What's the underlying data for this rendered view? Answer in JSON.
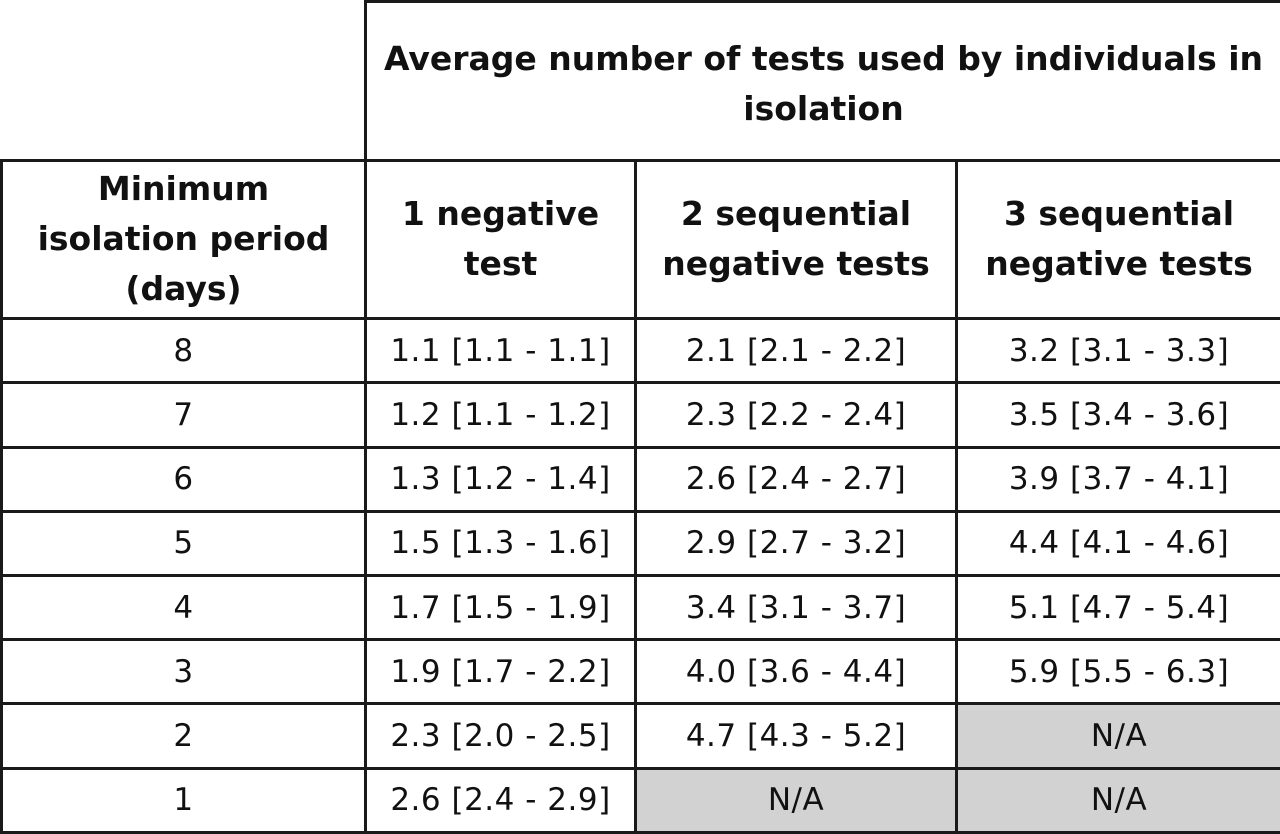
{
  "table": {
    "group_header": "Average number of tests used by individuals in isolation",
    "row_header": "Minimum isolation period (days)",
    "columns": [
      "1 negative test",
      "2 sequential negative tests",
      "3 sequential negative tests"
    ],
    "rows": [
      {
        "days": "8",
        "c1": "1.1 [1.1 - 1.1]",
        "c2": "2.1 [2.1 - 2.2]",
        "c3": "3.2 [3.1 - 3.3]"
      },
      {
        "days": "7",
        "c1": "1.2 [1.1 - 1.2]",
        "c2": "2.3 [2.2 - 2.4]",
        "c3": "3.5 [3.4 - 3.6]"
      },
      {
        "days": "6",
        "c1": "1.3 [1.2 - 1.4]",
        "c2": "2.6 [2.4 - 2.7]",
        "c3": "3.9 [3.7 - 4.1]"
      },
      {
        "days": "5",
        "c1": "1.5 [1.3 - 1.6]",
        "c2": "2.9 [2.7 - 3.2]",
        "c3": "4.4 [4.1 - 4.6]"
      },
      {
        "days": "4",
        "c1": "1.7 [1.5 - 1.9]",
        "c2": "3.4 [3.1 - 3.7]",
        "c3": "5.1 [4.7 - 5.4]"
      },
      {
        "days": "3",
        "c1": "1.9 [1.7 - 2.2]",
        "c2": "4.0 [3.6 - 4.4]",
        "c3": "5.9 [5.5 - 6.3]"
      },
      {
        "days": "2",
        "c1": "2.3 [2.0 - 2.5]",
        "c2": "4.7 [4.3 - 5.2]",
        "c3": "N/A"
      },
      {
        "days": "1",
        "c1": "2.6 [2.4 - 2.9]",
        "c2": "N/A",
        "c3": "N/A"
      }
    ],
    "na_color": "#d2d2d2"
  }
}
